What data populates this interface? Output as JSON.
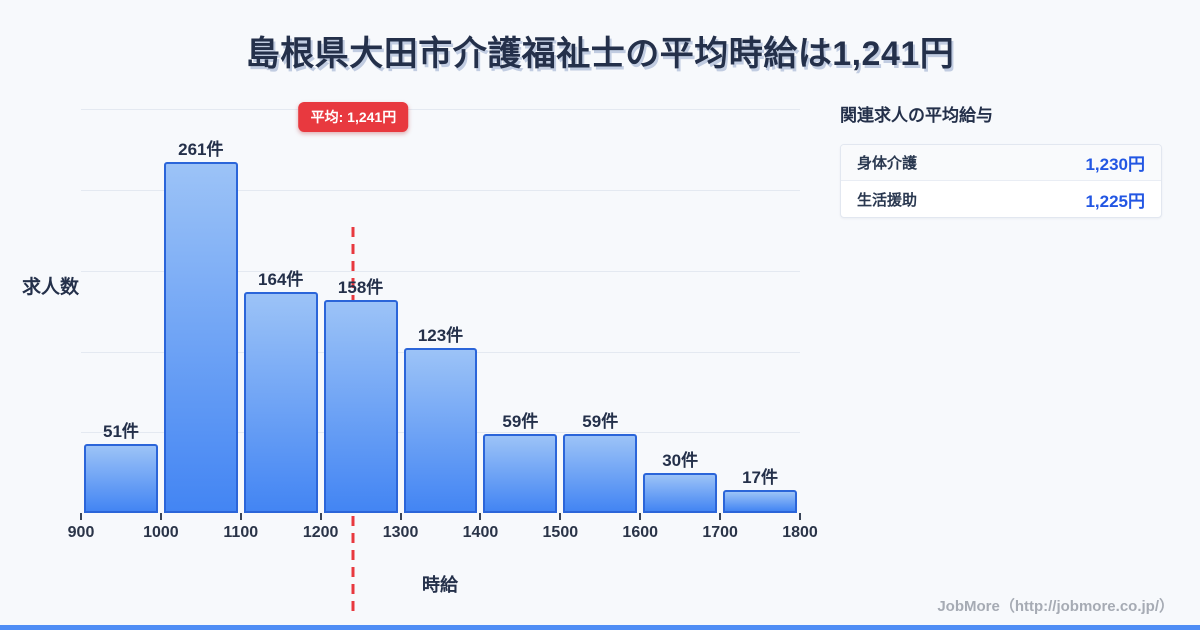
{
  "title": "島根県大田市介護福祉士の平均時給は1,241円",
  "colors": {
    "background": "#f7f9fc",
    "text_dark": "#24304a",
    "bar_fill_top": "#9cc3f7",
    "bar_fill_bottom": "#4385f3",
    "bar_border": "#2b65d9",
    "gridline": "#e4e9f1",
    "average_red": "#e8393f",
    "value_blue": "#2256e3",
    "footer_gray": "#a6abb4",
    "bottom_bar_blue": "#4f8df5"
  },
  "chart_data": {
    "type": "bar",
    "histogram": true,
    "title": "島根県大田市介護福祉士の平均時給は1,241円",
    "xlabel": "時給",
    "ylabel": "求人数",
    "bin_edges": [
      900,
      1000,
      1100,
      1200,
      1300,
      1400,
      1500,
      1600,
      1700,
      1800
    ],
    "categories": [
      "900-1000",
      "1000-1100",
      "1100-1200",
      "1200-1300",
      "1300-1400",
      "1400-1500",
      "1500-1600",
      "1600-1700",
      "1700-1800"
    ],
    "values": [
      51,
      261,
      164,
      158,
      123,
      59,
      59,
      30,
      17
    ],
    "value_labels": [
      "51件",
      "261件",
      "164件",
      "158件",
      "123件",
      "59件",
      "59件",
      "30件",
      "17件"
    ],
    "x_tick_labels": [
      "900",
      "1000",
      "1100",
      "1200",
      "1300",
      "1400",
      "1500",
      "1600",
      "1700",
      "1800"
    ],
    "unit_suffix": "件",
    "ylim": [
      0,
      307
    ],
    "gridline_step": 60,
    "grid": "horizontal",
    "legend_position": "none",
    "average": {
      "value": 1241,
      "label": "平均: 1,241円"
    }
  },
  "side_panel": {
    "heading": "関連求人の平均給与",
    "rows": [
      {
        "label": "身体介護",
        "value": "1,230円"
      },
      {
        "label": "生活援助",
        "value": "1,225円"
      }
    ]
  },
  "footer": {
    "credit": "JobMore（http://jobmore.co.jp/）"
  }
}
